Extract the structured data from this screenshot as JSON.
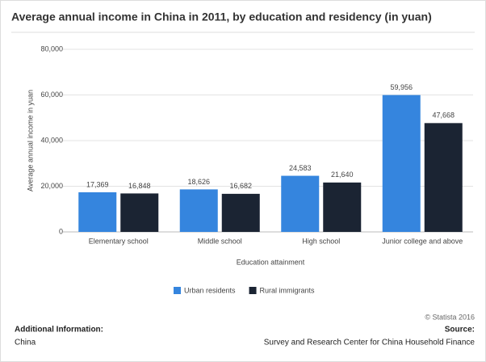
{
  "chart_data": {
    "type": "bar",
    "title": "Average annual income in China in 2011, by education and residency (in yuan)",
    "y_label": "Average annual income in yuan",
    "x_label": "Education attainment",
    "categories": [
      "Elementary school",
      "Middle school",
      "High school",
      "Junior college and above"
    ],
    "series": [
      {
        "name": "Urban residents",
        "color": "#3585de",
        "values": [
          17369,
          18626,
          24583,
          59956
        ],
        "value_labels": [
          "17,369",
          "18,626",
          "24,583",
          "59,956"
        ]
      },
      {
        "name": "Rural immigrants",
        "color": "#1b2433",
        "values": [
          16848,
          16682,
          21640,
          47668
        ],
        "value_labels": [
          "16,848",
          "16,682",
          "21,640",
          "47,668"
        ]
      }
    ],
    "ylim": [
      0,
      80000
    ],
    "yticks": [
      0,
      {
        "value": 20000,
        "label": "20,000"
      },
      {
        "value": 40000,
        "label": "40,000"
      },
      {
        "value": 60000,
        "label": "60,000"
      },
      {
        "value": 80000,
        "label": "80,000"
      }
    ],
    "grid": true,
    "credit": "© Statista 2016",
    "additional_info_label": "Additional Information:",
    "additional_info": "China",
    "source_label": "Source:",
    "source": "Survey and Research Center for China Household Finance"
  }
}
